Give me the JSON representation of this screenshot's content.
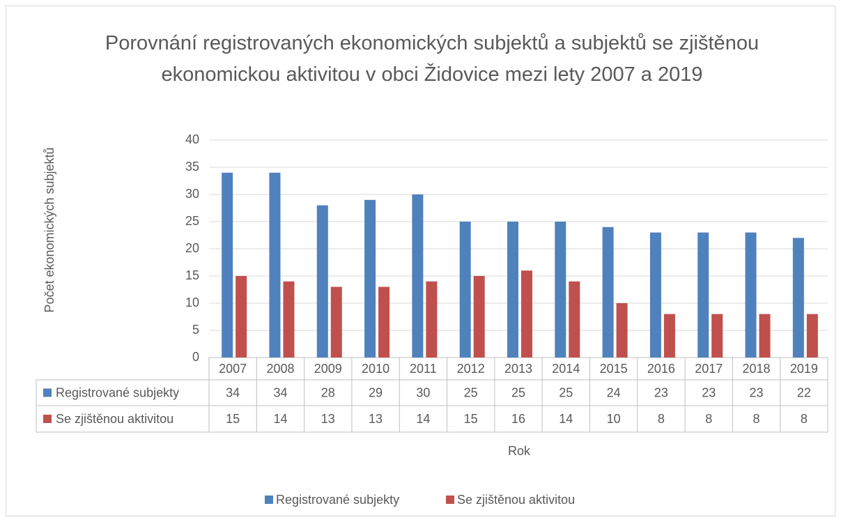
{
  "chart_data": {
    "type": "bar",
    "title": "Porovnání registrovaných ekonomických subjektů a subjektů se zjištěnou ekonomickou aktivitou v obci Židovice mezi lety 2007 a 2019",
    "xlabel": "Rok",
    "ylabel": "Počet ekonomických subjektů",
    "categories": [
      "2007",
      "2008",
      "2009",
      "2010",
      "2011",
      "2012",
      "2013",
      "2014",
      "2015",
      "2016",
      "2017",
      "2018",
      "2019"
    ],
    "series": [
      {
        "name": "Registrované subjekty",
        "color": "#4f81bd",
        "values": [
          34,
          34,
          28,
          29,
          30,
          25,
          25,
          25,
          24,
          23,
          23,
          23,
          22
        ]
      },
      {
        "name": "Se zjištěnou aktivitou",
        "color": "#c0504d",
        "values": [
          15,
          14,
          13,
          13,
          14,
          15,
          16,
          14,
          10,
          8,
          8,
          8,
          8
        ]
      }
    ],
    "ylim": [
      0,
      40
    ],
    "yticks": [
      0,
      5,
      10,
      15,
      20,
      25,
      30,
      35,
      40
    ],
    "grid": true,
    "legend": "bottom"
  }
}
